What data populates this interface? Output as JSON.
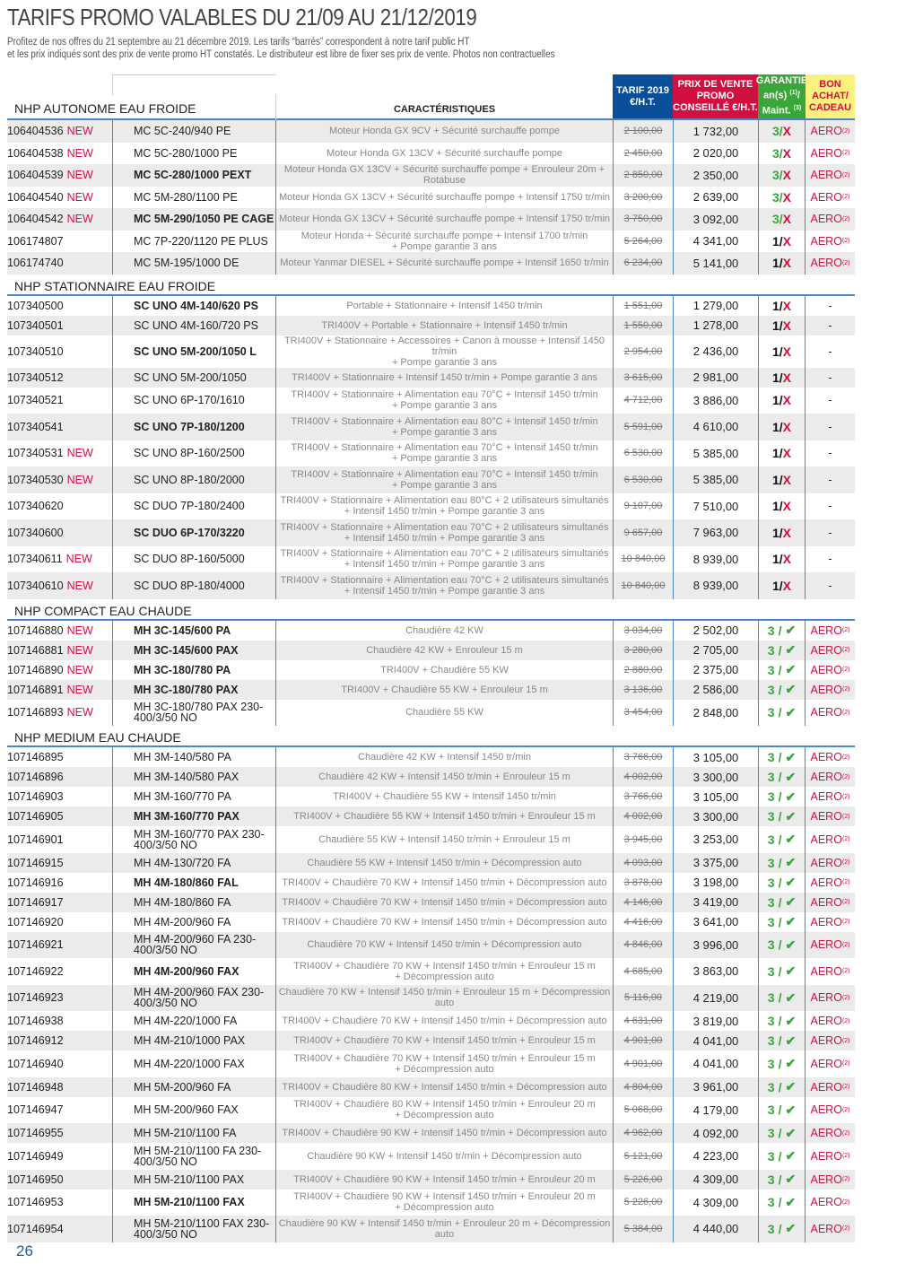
{
  "title": "TARIFS PROMO VALABLES DU 21/09 AU 21/12/2019",
  "subtitle_line1": "Profitez de nos offres du 21 septembre au 21 décembre 2019. Les tarifs “barrés” correspondent à notre tarif public HT",
  "subtitle_line2": "et les prix indiqués sont des prix de vente promo HT constatés. Le distributeur est libre de fixer ses prix de vente. Photos non contractuelles",
  "header": {
    "caracteristiques": "CARACTÉRISTIQUES",
    "tarif": "TARIF 2019 €/H.T.",
    "prix_promo": "PRIX DE VENTE PROMO CONSEILLÉ €/H.T.",
    "garantie": "GARANTIE an(s)",
    "garantie_note1": "(1)",
    "garantie_maint": "/ Maint.",
    "garantie_note3": "(3)",
    "bon": "BON ACHAT/ CADEAU"
  },
  "labels": {
    "new": "NEW",
    "aero": "AERO",
    "aero_note": "(2)",
    "dash": "-",
    "slash": "/",
    "x_mark": "X",
    "check_mark": "✔"
  },
  "colors": {
    "blue": "#0a4f9a",
    "red": "#d2103f",
    "green": "#3aa63a",
    "yellow": "#fbf17e"
  },
  "sections": [
    {
      "title": "NHP AUTONOME EAU FROIDE",
      "rows": [
        {
          "id": "106404536",
          "new": true,
          "model": "MC 5C-240/940 PE",
          "bold": false,
          "desc": "Moteur Honda GX 9CV + Sécurité surchauffe pompe",
          "old": "2 100,00",
          "price": "1 732,00",
          "years": "3",
          "maint": "x",
          "bon": "aero"
        },
        {
          "id": "106404538",
          "new": true,
          "model": "MC 5C-280/1000 PE",
          "bold": false,
          "desc": "Moteur Honda GX 13CV + Sécurité surchauffe pompe",
          "old": "2 450,00",
          "price": "2 020,00",
          "years": "3",
          "maint": "x",
          "bon": "aero"
        },
        {
          "id": "106404539",
          "new": true,
          "model": "MC 5C-280/1000 PEXT",
          "bold": true,
          "desc": "Moteur Honda GX 13CV + Sécurité surchauffe pompe + Enrouleur 20m + Rotabuse",
          "old": "2 850,00",
          "price": "2 350,00",
          "years": "3",
          "maint": "x",
          "bon": "aero"
        },
        {
          "id": "106404540",
          "new": true,
          "model": "MC 5M-280/1100 PE",
          "bold": false,
          "desc": "Moteur Honda GX 13CV + Sécurité surchauffe pompe + Intensif 1750 tr/min",
          "old": "3 200,00",
          "price": "2 639,00",
          "years": "3",
          "maint": "x",
          "bon": "aero"
        },
        {
          "id": "106404542",
          "new": true,
          "model": "MC 5M-290/1050 PE CAGE",
          "bold": true,
          "desc": "Moteur Honda GX 13CV + Sécurité surchauffe pompe + Intensif 1750 tr/min",
          "old": "3 750,00",
          "price": "3 092,00",
          "years": "3",
          "maint": "x",
          "bon": "aero"
        },
        {
          "id": "106174807",
          "new": false,
          "model": "MC 7P-220/1120 PE PLUS",
          "bold": false,
          "desc": "Moteur Honda + Sécurité surchauffe pompe + Intensif 1700 tr/min\n+ Pompe garantie 3 ans",
          "old": "5 264,00",
          "price": "4 341,00",
          "years": "1",
          "maint": "x",
          "bon": "aero"
        },
        {
          "id": "106174740",
          "new": false,
          "model": "MC 5M-195/1000 DE",
          "bold": false,
          "desc": "Moteur Yanmar DIESEL + Sécurité surchauffe pompe + Intensif 1650 tr/min",
          "old": "6 234,00",
          "price": "5 141,00",
          "years": "1",
          "maint": "x",
          "bon": "aero"
        }
      ]
    },
    {
      "title": "NHP STATIONNAIRE EAU FROIDE",
      "rows": [
        {
          "id": "107340500",
          "new": false,
          "model": "SC UNO 4M-140/620 PS",
          "bold": true,
          "desc": "Portable + Stationnaire + Intensif 1450 tr/min",
          "old": "1 551,00",
          "price": "1 279,00",
          "years": "1",
          "maint": "x",
          "bon": "dash"
        },
        {
          "id": "107340501",
          "new": false,
          "model": "SC UNO 4M-160/720 PS",
          "bold": false,
          "desc": "TRI400V + Portable + Stationnaire + Intensif 1450 tr/min",
          "old": "1 550,00",
          "price": "1 278,00",
          "years": "1",
          "maint": "x",
          "bon": "dash"
        },
        {
          "id": "107340510",
          "new": false,
          "model": "SC UNO 5M-200/1050 L",
          "bold": true,
          "desc": "TRI400V + Stationnaire + Accessoires + Canon à mousse + Intensif 1450 tr/min\n+ Pompe garantie 3 ans",
          "old": "2 954,00",
          "price": "2 436,00",
          "years": "1",
          "maint": "x",
          "bon": "dash"
        },
        {
          "id": "107340512",
          "new": false,
          "model": "SC UNO 5M-200/1050",
          "bold": false,
          "desc": "TRI400V + Stationnaire + Intensif 1450 tr/min + Pompe garantie 3 ans",
          "old": "3 615,00",
          "price": "2 981,00",
          "years": "1",
          "maint": "x",
          "bon": "dash"
        },
        {
          "id": "107340521",
          "new": false,
          "model": "SC UNO 6P-170/1610",
          "bold": false,
          "desc": "TRI400V + Stationnaire + Alimentation eau 70°C + Intensif 1450 tr/min\n+ Pompe garantie 3 ans",
          "old": "4 712,00",
          "price": "3 886,00",
          "years": "1",
          "maint": "x",
          "bon": "dash"
        },
        {
          "id": "107340541",
          "new": false,
          "model": "SC UNO 7P-180/1200",
          "bold": true,
          "desc": "TRI400V + Stationnaire + Alimentation eau 80°C + Intensif 1450 tr/min\n+ Pompe garantie 3 ans",
          "old": "5 591,00",
          "price": "4 610,00",
          "years": "1",
          "maint": "x",
          "bon": "dash"
        },
        {
          "id": "107340531",
          "new": true,
          "model": "SC UNO 8P-160/2500",
          "bold": false,
          "desc": "TRI400V + Stationnaire + Alimentation eau 70°C + Intensif 1450 tr/min\n+ Pompe garantie 3 ans",
          "old": "6 530,00",
          "price": "5 385,00",
          "years": "1",
          "maint": "x",
          "bon": "dash"
        },
        {
          "id": "107340530",
          "new": true,
          "model": "SC UNO 8P-180/2000",
          "bold": false,
          "desc": "TRI400V + Stationnaire + Alimentation eau 70°C + Intensif 1450 tr/min\n+ Pompe garantie 3 ans",
          "old": "6 530,00",
          "price": "5 385,00",
          "years": "1",
          "maint": "x",
          "bon": "dash"
        },
        {
          "id": "107340620",
          "new": false,
          "model": "SC DUO 7P-180/2400",
          "bold": false,
          "desc": "TRI400V + Stationnaire + Alimentation eau 80°C + 2 utilisateurs simultanés\n+ Intensif 1450 tr/min + Pompe garantie 3 ans",
          "old": "9 107,00",
          "price": "7 510,00",
          "years": "1",
          "maint": "x",
          "bon": "dash"
        },
        {
          "id": "107340600",
          "new": false,
          "model": "SC DUO 6P-170/3220",
          "bold": true,
          "desc": "TRI400V + Stationnaire + Alimentation eau 70°C + 2 utilisateurs simultanés\n+ Intensif 1450 tr/min + Pompe garantie 3 ans",
          "old": "9 657,00",
          "price": "7 963,00",
          "years": "1",
          "maint": "x",
          "bon": "dash"
        },
        {
          "id": "107340611",
          "new": true,
          "model": "SC DUO 8P-160/5000",
          "bold": false,
          "desc": "TRI400V + Stationnaire + Alimentation eau 70°C + 2 utilisateurs simultanés\n+ Intensif 1450 tr/min + Pompe garantie 3 ans",
          "old": "10 840,00",
          "price": "8 939,00",
          "years": "1",
          "maint": "x",
          "bon": "dash"
        },
        {
          "id": "107340610",
          "new": true,
          "model": "SC DUO 8P-180/4000",
          "bold": false,
          "desc": "TRI400V + Stationnaire + Alimentation eau 70°C + 2 utilisateurs simultanés\n+ Intensif 1450 tr/min + Pompe garantie 3 ans",
          "old": "10 840,00",
          "price": "8 939,00",
          "years": "1",
          "maint": "x",
          "bon": "dash"
        }
      ]
    },
    {
      "title": "NHP COMPACT EAU CHAUDE",
      "rows": [
        {
          "id": "107146880",
          "new": true,
          "model": "MH 3C-145/600 PA",
          "bold": true,
          "desc": "Chaudière 42 KW",
          "old": "3 034,00",
          "price": "2 502,00",
          "years": "3",
          "maint": "check",
          "bon": "aero"
        },
        {
          "id": "107146881",
          "new": true,
          "model": "MH 3C-145/600 PAX",
          "bold": true,
          "desc": "Chaudière 42 KW + Enrouleur 15 m",
          "old": "3 280,00",
          "price": "2 705,00",
          "years": "3",
          "maint": "check",
          "bon": "aero"
        },
        {
          "id": "107146890",
          "new": true,
          "model": "MH 3C-180/780 PA",
          "bold": true,
          "desc": "TRI400V + Chaudière 55 KW",
          "old": "2 880,00",
          "price": "2 375,00",
          "years": "3",
          "maint": "check",
          "bon": "aero"
        },
        {
          "id": "107146891",
          "new": true,
          "model": "MH 3C-180/780 PAX",
          "bold": true,
          "desc": "TRI400V + Chaudière 55 KW + Enrouleur 15 m",
          "old": "3 136,00",
          "price": "2 586,00",
          "years": "3",
          "maint": "check",
          "bon": "aero"
        },
        {
          "id": "107146893",
          "new": true,
          "model": "MH 3C-180/780 PAX 230-400/3/50 NO",
          "bold": false,
          "desc": "Chaudière 55 KW",
          "old": "3 454,00",
          "price": "2 848,00",
          "years": "3",
          "maint": "check",
          "bon": "aero"
        }
      ]
    },
    {
      "title": "NHP MEDIUM EAU CHAUDE",
      "rows": [
        {
          "id": "107146895",
          "new": false,
          "model": "MH 3M-140/580 PA",
          "bold": false,
          "desc": "Chaudière 42 KW + Intensif 1450 tr/min",
          "old": "3 766,00",
          "price": "3 105,00",
          "years": "3",
          "maint": "check",
          "bon": "aero"
        },
        {
          "id": "107146896",
          "new": false,
          "model": "MH 3M-140/580 PAX",
          "bold": false,
          "desc": "Chaudière 42 KW + Intensif 1450 tr/min + Enrouleur 15 m",
          "old": "4 002,00",
          "price": "3 300,00",
          "years": "3",
          "maint": "check",
          "bon": "aero"
        },
        {
          "id": "107146903",
          "new": false,
          "model": "MH 3M-160/770 PA",
          "bold": false,
          "desc": "TRI400V + Chaudière 55 KW + Intensif 1450 tr/min",
          "old": "3 766,00",
          "price": "3 105,00",
          "years": "3",
          "maint": "check",
          "bon": "aero"
        },
        {
          "id": "107146905",
          "new": false,
          "model": "MH 3M-160/770 PAX",
          "bold": true,
          "desc": "TRI400V + Chaudière 55 KW + Intensif 1450 tr/min + Enrouleur 15 m",
          "old": "4 002,00",
          "price": "3 300,00",
          "years": "3",
          "maint": "check",
          "bon": "aero"
        },
        {
          "id": "107146901",
          "new": false,
          "model": "MH 3M-160/770 PAX 230-400/3/50 NO",
          "bold": false,
          "desc": "Chaudière 55 KW + Intensif 1450 tr/min + Enrouleur 15 m",
          "old": "3 945,00",
          "price": "3 253,00",
          "years": "3",
          "maint": "check",
          "bon": "aero"
        },
        {
          "id": "107146915",
          "new": false,
          "model": "MH 4M-130/720 FA",
          "bold": false,
          "desc": "Chaudière 55 KW + Intensif 1450 tr/min + Décompression auto",
          "old": "4 093,00",
          "price": "3 375,00",
          "years": "3",
          "maint": "check",
          "bon": "aero"
        },
        {
          "id": "107146916",
          "new": false,
          "model": "MH 4M-180/860 FAL",
          "bold": true,
          "desc": "TRI400V + Chaudière 70 KW + Intensif 1450 tr/min + Décompression auto",
          "old": "3 878,00",
          "price": "3 198,00",
          "years": "3",
          "maint": "check",
          "bon": "aero"
        },
        {
          "id": "107146917",
          "new": false,
          "model": "MH 4M-180/860 FA",
          "bold": false,
          "desc": "TRI400V + Chaudière 70 KW + Intensif 1450 tr/min + Décompression auto",
          "old": "4 146,00",
          "price": "3 419,00",
          "years": "3",
          "maint": "check",
          "bon": "aero"
        },
        {
          "id": "107146920",
          "new": false,
          "model": "MH 4M-200/960 FA",
          "bold": false,
          "desc": "TRI400V + Chaudière 70 KW + Intensif 1450 tr/min + Décompression auto",
          "old": "4 416,00",
          "price": "3 641,00",
          "years": "3",
          "maint": "check",
          "bon": "aero"
        },
        {
          "id": "107146921",
          "new": false,
          "model": "MH 4M-200/960 FA 230-400/3/50 NO",
          "bold": false,
          "desc": "Chaudière 70 KW + Intensif 1450 tr/min + Décompression auto",
          "old": "4 846,00",
          "price": "3 996,00",
          "years": "3",
          "maint": "check",
          "bon": "aero"
        },
        {
          "id": "107146922",
          "new": false,
          "model": "MH 4M-200/960 FAX",
          "bold": true,
          "desc": "TRI400V + Chaudière 70 KW + Intensif 1450 tr/min + Enrouleur 15 m\n+ Décompression auto",
          "old": "4 685,00",
          "price": "3 863,00",
          "years": "3",
          "maint": "check",
          "bon": "aero"
        },
        {
          "id": "107146923",
          "new": false,
          "model": "MH 4M-200/960 FAX 230-400/3/50 NO",
          "bold": false,
          "desc": "Chaudière 70 KW + Intensif 1450 tr/min + Enrouleur 15 m + Décompression auto",
          "old": "5 116,00",
          "price": "4 219,00",
          "years": "3",
          "maint": "check",
          "bon": "aero"
        },
        {
          "id": "107146938",
          "new": false,
          "model": "MH 4M-220/1000 FA",
          "bold": false,
          "desc": "TRI400V + Chaudière 70 KW + Intensif 1450 tr/min + Décompression auto",
          "old": "4 631,00",
          "price": "3 819,00",
          "years": "3",
          "maint": "check",
          "bon": "aero"
        },
        {
          "id": "107146912",
          "new": false,
          "model": "MH 4M-210/1000 PAX",
          "bold": false,
          "desc": "TRI400V + Chaudière 70 KW + Intensif 1450 tr/min + Enrouleur 15 m",
          "old": "4 901,00",
          "price": "4 041,00",
          "years": "3",
          "maint": "check",
          "bon": "aero"
        },
        {
          "id": "107146940",
          "new": false,
          "model": "MH 4M-220/1000 FAX",
          "bold": false,
          "desc": "TRI400V + Chaudière 70 KW + Intensif 1450 tr/min + Enrouleur 15 m\n+ Décompression auto",
          "old": "4 901,00",
          "price": "4 041,00",
          "years": "3",
          "maint": "check",
          "bon": "aero"
        },
        {
          "id": "107146948",
          "new": false,
          "model": "MH 5M-200/960 FA",
          "bold": false,
          "desc": "TRI400V + Chaudière 80 KW + Intensif 1450 tr/min + Décompression auto",
          "old": "4 804,00",
          "price": "3 961,00",
          "years": "3",
          "maint": "check",
          "bon": "aero"
        },
        {
          "id": "107146947",
          "new": false,
          "model": "MH 5M-200/960 FAX",
          "bold": false,
          "desc": "TRI400V + Chaudière 80 KW + Intensif 1450 tr/min + Enrouleur 20 m\n+ Décompression auto",
          "old": "5 068,00",
          "price": "4 179,00",
          "years": "3",
          "maint": "check",
          "bon": "aero"
        },
        {
          "id": "107146955",
          "new": false,
          "model": "MH 5M-210/1100 FA",
          "bold": false,
          "desc": "TRI400V + Chaudière 90 KW + Intensif 1450 tr/min + Décompression auto",
          "old": "4 962,00",
          "price": "4 092,00",
          "years": "3",
          "maint": "check",
          "bon": "aero"
        },
        {
          "id": "107146949",
          "new": false,
          "model": "MH 5M-210/1100 FA 230-400/3/50 NO",
          "bold": false,
          "desc": "Chaudière 90 KW + Intensif 1450 tr/min + Décompression auto",
          "old": "5 121,00",
          "price": "4 223,00",
          "years": "3",
          "maint": "check",
          "bon": "aero"
        },
        {
          "id": "107146950",
          "new": false,
          "model": "MH 5M-210/1100 PAX",
          "bold": false,
          "desc": "TRI400V + Chaudière 90 KW + Intensif 1450 tr/min + Enrouleur 20 m",
          "old": "5 226,00",
          "price": "4 309,00",
          "years": "3",
          "maint": "check",
          "bon": "aero"
        },
        {
          "id": "107146953",
          "new": false,
          "model": "MH 5M-210/1100 FAX",
          "bold": true,
          "desc": "TRI400V + Chaudière 90 KW + Intensif 1450 tr/min + Enrouleur 20 m\n+ Décompression auto",
          "old": "5 226,00",
          "price": "4 309,00",
          "years": "3",
          "maint": "check",
          "bon": "aero"
        },
        {
          "id": "107146954",
          "new": false,
          "model": "MH 5M-210/1100 FAX 230-400/3/50 NO",
          "bold": false,
          "desc": "Chaudière 90 KW + Intensif 1450 tr/min + Enrouleur 20 m + Décompression auto",
          "old": "5 384,00",
          "price": "4 440,00",
          "years": "3",
          "maint": "check",
          "bon": "aero"
        }
      ]
    }
  ],
  "page_number": "26"
}
